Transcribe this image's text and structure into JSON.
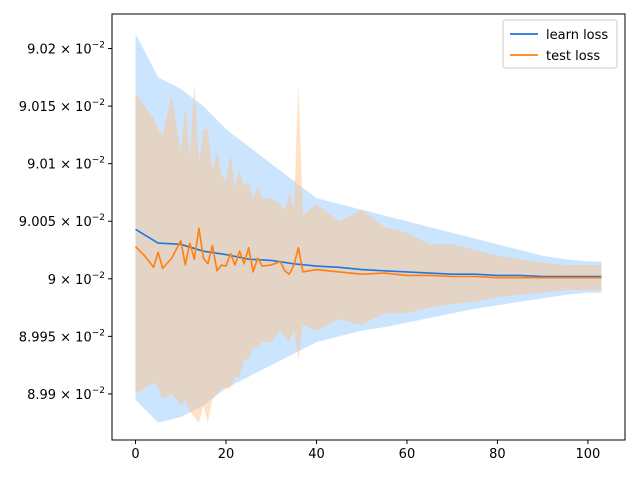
{
  "chart_data": {
    "type": "line",
    "title": "",
    "xlabel": "",
    "ylabel": "",
    "xlim": [
      -5.2,
      108.2
    ],
    "ylim": [
      0.08986,
      0.09023
    ],
    "grid": false,
    "legend_position": "top-right",
    "x_ticks": [
      {
        "value": 0,
        "label": "0"
      },
      {
        "value": 20,
        "label": "20"
      },
      {
        "value": 40,
        "label": "40"
      },
      {
        "value": 60,
        "label": "60"
      },
      {
        "value": 80,
        "label": "80"
      },
      {
        "value": 100,
        "label": "100"
      }
    ],
    "y_ticks": [
      {
        "value": 0.0899,
        "mantissa": "8.99",
        "exp_base": "10",
        "exp": "−2"
      },
      {
        "value": 0.08995,
        "mantissa": "8.995",
        "exp_base": "10",
        "exp": "−2"
      },
      {
        "value": 0.09,
        "mantissa": "9",
        "exp_base": "10",
        "exp": "−2"
      },
      {
        "value": 0.09005,
        "mantissa": "9.005",
        "exp_base": "10",
        "exp": "−2"
      },
      {
        "value": 0.0901,
        "mantissa": "9.01",
        "exp_base": "10",
        "exp": "−2"
      },
      {
        "value": 0.09015,
        "mantissa": "9.015",
        "exp_base": "10",
        "exp": "−2"
      },
      {
        "value": 0.0902,
        "mantissa": "9.02",
        "exp_base": "10",
        "exp": "−2"
      }
    ],
    "series": [
      {
        "name": "learn loss",
        "color": "#1f77e0",
        "band_color": "#8ec5ff",
        "band_opacity": 0.45,
        "x": [
          0,
          5,
          10,
          15,
          20,
          25,
          30,
          35,
          40,
          45,
          50,
          55,
          60,
          65,
          70,
          75,
          80,
          85,
          90,
          95,
          100,
          103
        ],
        "y": [
          0.090043,
          0.090031,
          0.09003,
          0.090024,
          0.090021,
          0.090017,
          0.090016,
          0.090013,
          0.090011,
          0.09001,
          0.090008,
          0.090007,
          0.090006,
          0.090005,
          0.090004,
          0.090004,
          0.090003,
          0.090003,
          0.090002,
          0.090002,
          0.090002,
          0.090002
        ],
        "upper": [
          0.090213,
          0.090175,
          0.090165,
          0.09015,
          0.09013,
          0.090115,
          0.0901,
          0.090085,
          0.09007,
          0.090065,
          0.09006,
          0.090055,
          0.09005,
          0.090045,
          0.09004,
          0.090035,
          0.09003,
          0.090025,
          0.09002,
          0.090017,
          0.090015,
          0.090015
        ],
        "lower": [
          0.089895,
          0.089875,
          0.08988,
          0.08989,
          0.089905,
          0.089915,
          0.089925,
          0.089935,
          0.089945,
          0.08995,
          0.089955,
          0.089958,
          0.089962,
          0.089966,
          0.08997,
          0.089974,
          0.089977,
          0.08998,
          0.089983,
          0.089986,
          0.089988,
          0.089988
        ]
      },
      {
        "name": "test loss",
        "color": "#ff7f0e",
        "band_color": "#ffbf80",
        "band_opacity": 0.45,
        "x": [
          0,
          2,
          4,
          5,
          6,
          8,
          10,
          11,
          12,
          13,
          14,
          15,
          16,
          17,
          18,
          19,
          20,
          21,
          22,
          23,
          24,
          25,
          26,
          27,
          28,
          30,
          32,
          33,
          34,
          35,
          36,
          37,
          40,
          45,
          50,
          55,
          60,
          65,
          70,
          75,
          80,
          85,
          90,
          95,
          100,
          103
        ],
        "y": [
          0.090028,
          0.09002,
          0.09001,
          0.090023,
          0.090009,
          0.090018,
          0.090033,
          0.090012,
          0.090031,
          0.090017,
          0.090044,
          0.090018,
          0.090013,
          0.090029,
          0.090007,
          0.090012,
          0.090011,
          0.090022,
          0.090012,
          0.090024,
          0.090013,
          0.090027,
          0.090006,
          0.090018,
          0.090011,
          0.090012,
          0.090015,
          0.090007,
          0.090004,
          0.090012,
          0.090027,
          0.090006,
          0.090008,
          0.090006,
          0.090004,
          0.090005,
          0.090003,
          0.090003,
          0.090002,
          0.090002,
          0.090001,
          0.090001,
          0.090001,
          0.090001,
          0.090001,
          0.090001
        ],
        "upper": [
          0.090162,
          0.09015,
          0.09014,
          0.09013,
          0.090125,
          0.09016,
          0.09011,
          0.09015,
          0.090105,
          0.09017,
          0.0901,
          0.09013,
          0.09013,
          0.090095,
          0.09011,
          0.09009,
          0.090085,
          0.09011,
          0.09008,
          0.090095,
          0.09008,
          0.090085,
          0.09007,
          0.09008,
          0.09007,
          0.09007,
          0.090065,
          0.09006,
          0.090075,
          0.09006,
          0.09017,
          0.090055,
          0.090065,
          0.09005,
          0.09006,
          0.090045,
          0.09004,
          0.09003,
          0.09003,
          0.090025,
          0.09002,
          0.090017,
          0.090014,
          0.090012,
          0.090012,
          0.090012
        ],
        "lower": [
          0.0899,
          0.089905,
          0.08991,
          0.089905,
          0.089895,
          0.0899,
          0.08989,
          0.089895,
          0.089885,
          0.08988,
          0.089875,
          0.08989,
          0.089875,
          0.089895,
          0.0899,
          0.089905,
          0.089905,
          0.089905,
          0.089915,
          0.089915,
          0.08993,
          0.08993,
          0.08994,
          0.08994,
          0.089945,
          0.089945,
          0.089955,
          0.08995,
          0.089945,
          0.089955,
          0.08993,
          0.08996,
          0.089955,
          0.089965,
          0.08996,
          0.08997,
          0.08997,
          0.089975,
          0.089978,
          0.08998,
          0.089984,
          0.089986,
          0.089988,
          0.08999,
          0.08999,
          0.08999
        ]
      }
    ]
  }
}
